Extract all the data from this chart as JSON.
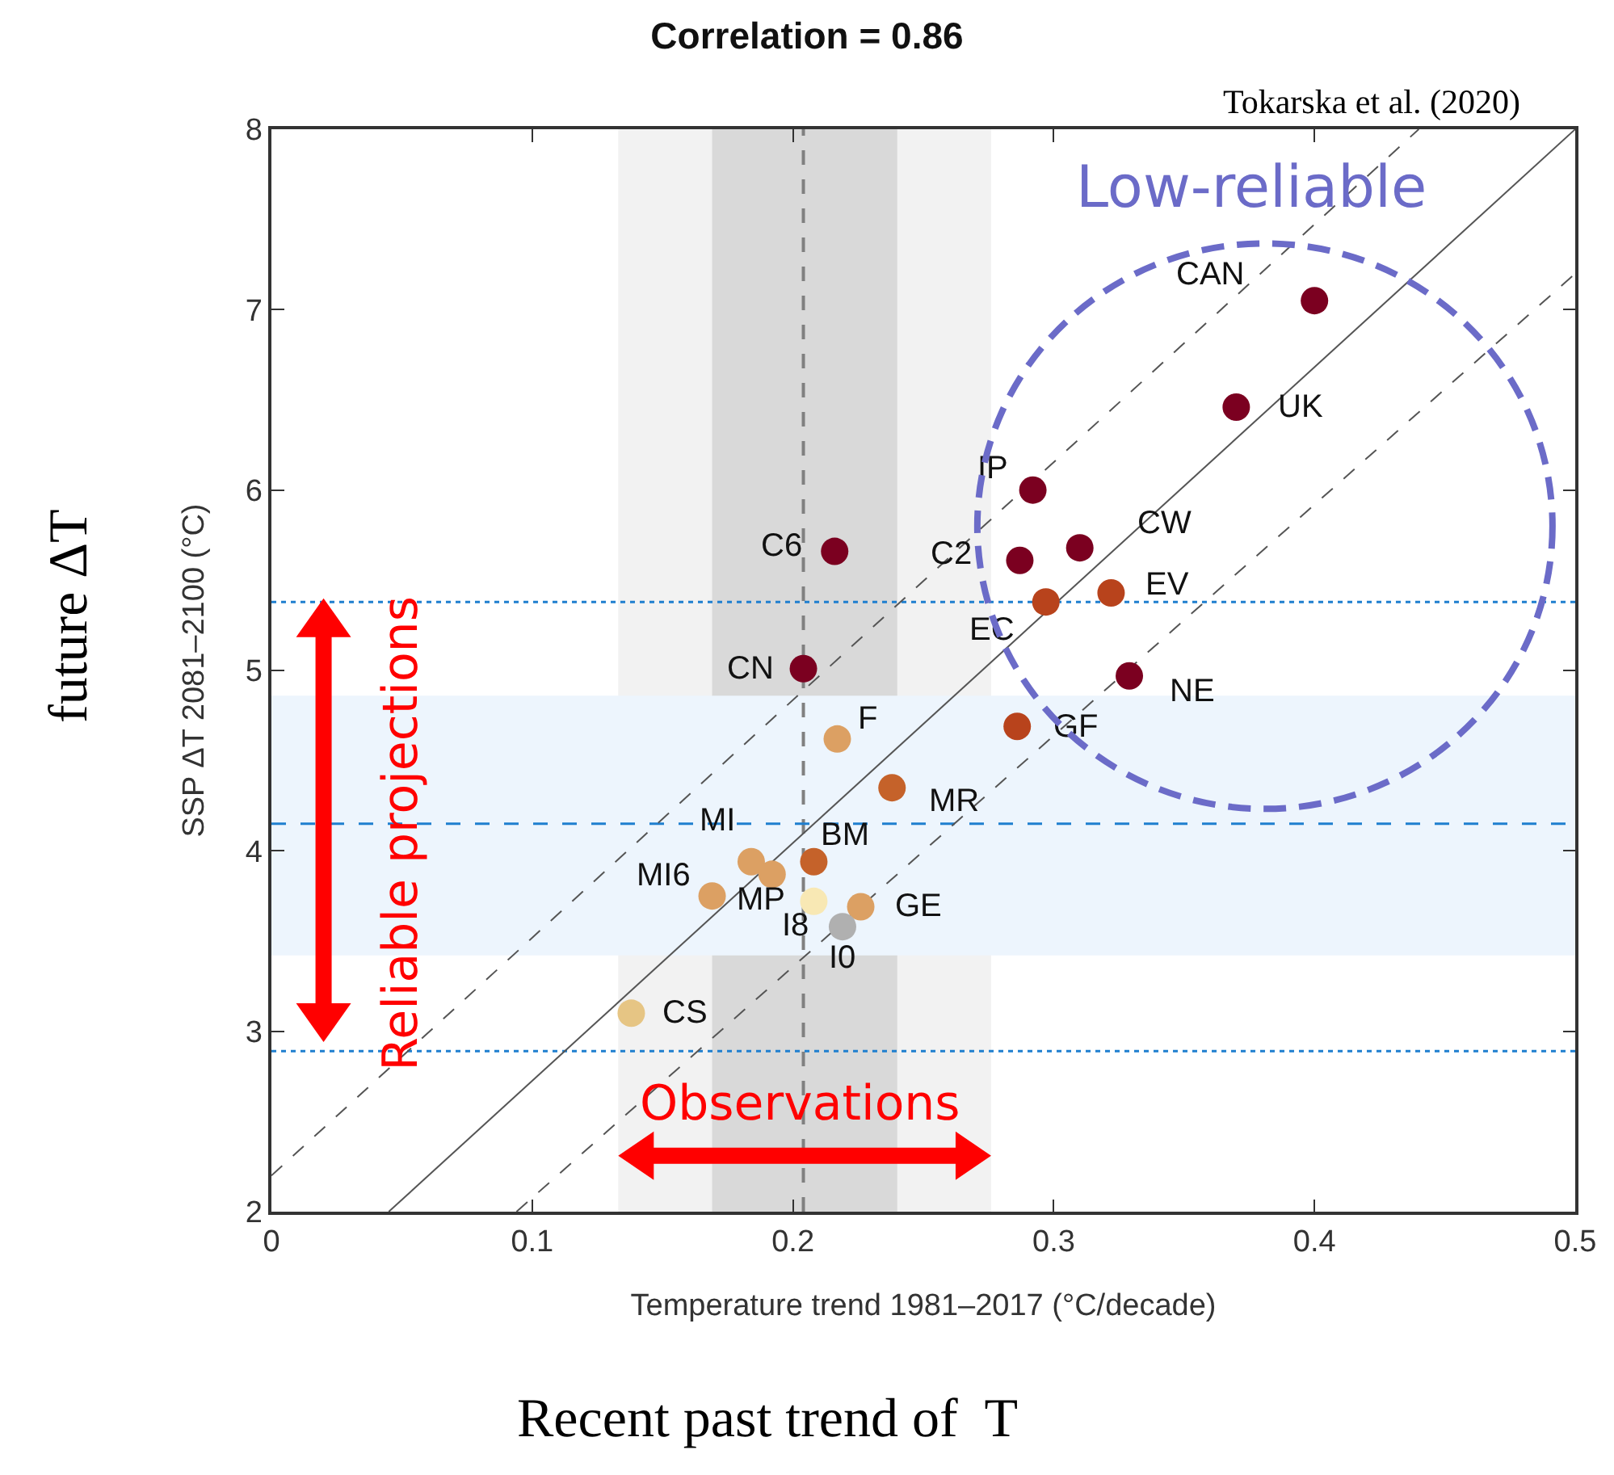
{
  "chart_data": {
    "type": "scatter",
    "title": "Correlation = 0.86",
    "xlabel": "Temperature trend 1981–2017 (°C/decade)",
    "ylabel": "SSP ΔT 2081–2100 (°C)",
    "xlim": [
      0,
      0.5
    ],
    "ylim": [
      2,
      8
    ],
    "xticks": [
      0,
      0.1,
      0.2,
      0.3,
      0.4,
      0.5
    ],
    "yticks": [
      2,
      3,
      4,
      5,
      6,
      7,
      8
    ],
    "grid": false,
    "series": [
      {
        "type": "scatter",
        "marker": "circle",
        "x": [
          0.4,
          0.37,
          0.292,
          0.287,
          0.31,
          0.297,
          0.322,
          0.329,
          0.286,
          0.216,
          0.204,
          0.217,
          0.238,
          0.208,
          0.184,
          0.192,
          0.169,
          0.208,
          0.226,
          0.219,
          0.138
        ],
        "values": [
          7.05,
          6.46,
          6.0,
          5.61,
          5.68,
          5.38,
          5.43,
          4.97,
          4.69,
          5.66,
          5.01,
          4.62,
          4.35,
          3.94,
          3.94,
          3.87,
          3.75,
          3.72,
          3.69,
          3.58,
          3.1
        ],
        "colors": [
          "#7b0020",
          "#7b0020",
          "#7b0020",
          "#7b0020",
          "#7b0020",
          "#b8431c",
          "#b8431c",
          "#7b0020",
          "#b8431c",
          "#7b0020",
          "#7b0020",
          "#dca063",
          "#c5622a",
          "#c5622a",
          "#dca063",
          "#dca063",
          "#dca063",
          "#f8e8b4",
          "#dca063",
          "#b0b0b0",
          "#e6c584"
        ]
      },
      {
        "type": "line",
        "x": [
          0.045,
          0.5
        ],
        "values": [
          2,
          8
        ],
        "color": "#555555",
        "line_style": "solid"
      },
      {
        "type": "line",
        "x": [
          0,
          0.44
        ],
        "values": [
          2.2,
          8
        ],
        "color": "#555555",
        "line_style": "dashed"
      },
      {
        "type": "line",
        "x": [
          0.094,
          0.5
        ],
        "values": [
          2,
          7.2
        ],
        "color": "#555555",
        "line_style": "dashed"
      }
    ],
    "ref_lines": [
      {
        "axis": "x",
        "value": 0.204,
        "color": "#808080",
        "line_style": "dashed"
      },
      {
        "axis": "y",
        "value": 4.15,
        "color": "#1f7fcf",
        "line_style": "dashed"
      },
      {
        "axis": "y",
        "value": 5.38,
        "color": "#1f7fcf",
        "line_style": "dotted"
      },
      {
        "axis": "y",
        "value": 2.89,
        "color": "#1f7fcf",
        "line_style": "dotted"
      }
    ],
    "bands": [
      {
        "axis": "x",
        "from": 0.133,
        "to": 0.276,
        "color": "#f2f2f2"
      },
      {
        "axis": "x",
        "from": 0.169,
        "to": 0.24,
        "color": "#d9d9d9"
      },
      {
        "axis": "y",
        "from": 3.42,
        "to": 4.86,
        "color": "#edf5fd"
      }
    ],
    "annotations": [
      "Tokarska et al. (2020)",
      "Low-reliable",
      "Reliable projections",
      "Observations",
      "future ΔT",
      "Recent past trend of  T",
      {
        "text": "CAN",
        "x": 0.4,
        "y": 7.05
      },
      {
        "text": "UK",
        "x": 0.37,
        "y": 6.46
      },
      {
        "text": "IP",
        "x": 0.292,
        "y": 6.0
      },
      {
        "text": "C2",
        "x": 0.287,
        "y": 5.61
      },
      {
        "text": "CW",
        "x": 0.31,
        "y": 5.68
      },
      {
        "text": "EC",
        "x": 0.297,
        "y": 5.38
      },
      {
        "text": "EV",
        "x": 0.322,
        "y": 5.43
      },
      {
        "text": "NE",
        "x": 0.329,
        "y": 4.97
      },
      {
        "text": "GF",
        "x": 0.286,
        "y": 4.69
      },
      {
        "text": "C6",
        "x": 0.216,
        "y": 5.66
      },
      {
        "text": "CN",
        "x": 0.204,
        "y": 5.01
      },
      {
        "text": "F",
        "x": 0.217,
        "y": 4.62
      },
      {
        "text": "MR",
        "x": 0.238,
        "y": 4.35
      },
      {
        "text": "BM",
        "x": 0.208,
        "y": 3.94
      },
      {
        "text": "MI",
        "x": 0.184,
        "y": 3.94
      },
      {
        "text": "MP",
        "x": 0.192,
        "y": 3.87
      },
      {
        "text": "MI6",
        "x": 0.169,
        "y": 3.75
      },
      {
        "text": "I8",
        "x": 0.208,
        "y": 3.72
      },
      {
        "text": "GE",
        "x": 0.226,
        "y": 3.69
      },
      {
        "text": "I0",
        "x": 0.219,
        "y": 3.58
      },
      {
        "text": "CS",
        "x": 0.138,
        "y": 3.1
      }
    ]
  }
}
